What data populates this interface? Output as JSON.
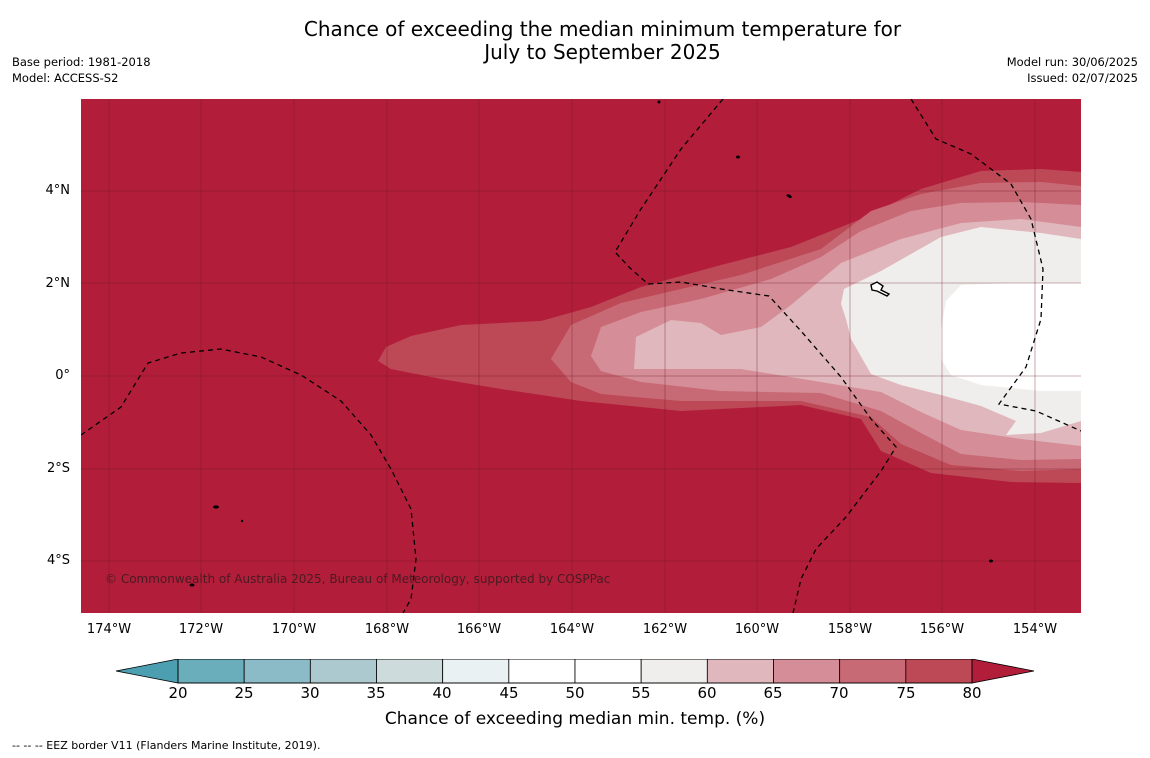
{
  "title": {
    "line1": "Chance of exceeding the median minimum temperature for",
    "line2": "July to September 2025"
  },
  "meta_left": {
    "base_period": "Base period: 1981-2018",
    "model": "Model: ACCESS-S2"
  },
  "meta_right": {
    "model_run": "Model run: 30/06/2025",
    "issued": "Issued: 02/07/2025"
  },
  "map": {
    "lat_labels": [
      "4°N",
      "2°N",
      "0°",
      "2°S",
      "4°S"
    ],
    "lon_labels": [
      "174°W",
      "172°W",
      "170°W",
      "168°W",
      "166°W",
      "164°W",
      "162°W",
      "160°W",
      "158°W",
      "156°W",
      "154°W"
    ],
    "copyright": "© Commonwealth of Australia 2025, Bureau of Meteorology, supported by COSPPac",
    "background_color": "#b21e3a"
  },
  "colorbar": {
    "ticks": [
      "20",
      "25",
      "30",
      "35",
      "40",
      "45",
      "50",
      "55",
      "60",
      "65",
      "70",
      "75",
      "80"
    ],
    "colors": [
      "#6aadbb",
      "#8abbc6",
      "#abc9ce",
      "#cddbdd",
      "#e9f1f2",
      "#ffffff",
      "#ffffff",
      "#efeeec",
      "#e0b7bd",
      "#d58e98",
      "#c86a76",
      "#bd4957"
    ],
    "low_extend_color": "#4c9fb0",
    "high_extend_color": "#b21e3a",
    "label": "Chance of exceeding median min. temp. (%)"
  },
  "footnote": "--  --  -- EEZ border V11 (Flanders Marine Institute, 2019)."
}
